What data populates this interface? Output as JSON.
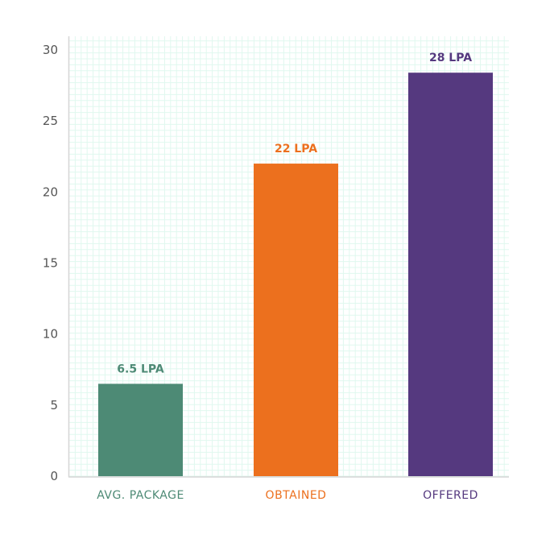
{
  "chart_data": {
    "type": "bar",
    "categories": [
      "AVG. PACKAGE",
      "OBTAINED",
      "OFFERED"
    ],
    "values": [
      6.5,
      22,
      28.4
    ],
    "data_labels": [
      "6.5 LPA",
      "22 LPA",
      "28 LPA"
    ],
    "colors": [
      "#4d8a75",
      "#ec701e",
      "#55397f"
    ],
    "yticks": [
      "0",
      "5",
      "10",
      "15",
      "20",
      "25",
      "30"
    ],
    "ylim": [
      0,
      30
    ],
    "grid": true,
    "grid_color": "#e0f8ef",
    "title": "",
    "xlabel": "",
    "ylabel": ""
  }
}
